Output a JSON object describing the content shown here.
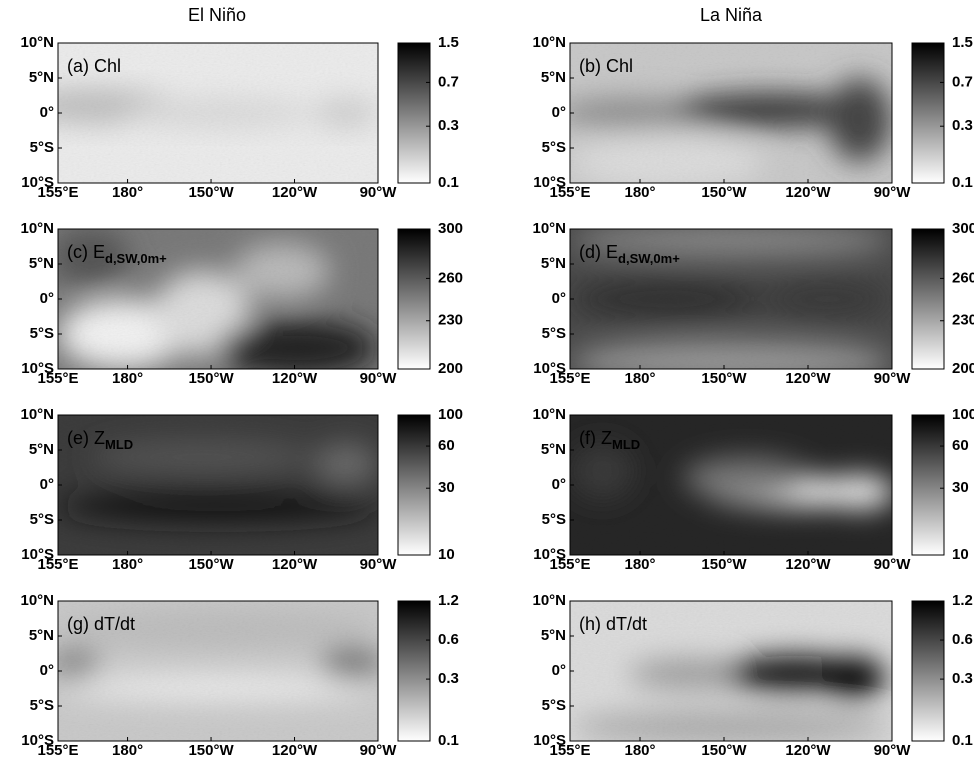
{
  "column_titles": [
    "El Niño",
    "La Niña"
  ],
  "axes": {
    "xlim": [
      155,
      270
    ],
    "xticks": [
      {
        "value": 155,
        "label": "155°E"
      },
      {
        "value": 180,
        "label": "180°"
      },
      {
        "value": 210,
        "label": "150°W"
      },
      {
        "value": 240,
        "label": "120°W"
      },
      {
        "value": 270,
        "label": "90°W"
      }
    ],
    "ylim": [
      -10,
      10
    ],
    "yticks": [
      {
        "value": 10,
        "label": "10°N"
      },
      {
        "value": 5,
        "label": "5°N"
      },
      {
        "value": 0,
        "label": "0°"
      },
      {
        "value": -5,
        "label": "5°S"
      },
      {
        "value": -10,
        "label": "10°S"
      }
    ]
  },
  "panels": [
    {
      "label": "(a) Chl",
      "colorbar": {
        "lim": [
          0.1,
          1.5
        ],
        "ticks": [
          1.5,
          0.7,
          0.3,
          0.1
        ],
        "log": true
      }
    },
    {
      "label": "(b) Chl",
      "colorbar": {
        "lim": [
          0.1,
          1.5
        ],
        "ticks": [
          1.5,
          0.7,
          0.3,
          0.1
        ],
        "log": true
      }
    },
    {
      "label": "(c) E",
      "label_subscript": "d,SW,0m+",
      "colorbar": {
        "lim": [
          200,
          300
        ],
        "ticks": [
          300,
          260,
          230,
          200
        ],
        "log": true
      }
    },
    {
      "label": "(d) E",
      "label_subscript": "d,SW,0m+",
      "colorbar": {
        "lim": [
          200,
          300
        ],
        "ticks": [
          300,
          260,
          230,
          200
        ],
        "log": true
      }
    },
    {
      "label": "(e) Z",
      "label_subscript": "MLD",
      "colorbar": {
        "lim": [
          10,
          100
        ],
        "ticks": [
          100,
          60,
          30,
          10
        ],
        "log": true
      }
    },
    {
      "label": "(f) Z",
      "label_subscript": "MLD",
      "colorbar": {
        "lim": [
          10,
          100
        ],
        "ticks": [
          100,
          60,
          30,
          10
        ],
        "log": true
      }
    },
    {
      "label": "(g) dT/dt",
      "colorbar": {
        "lim": [
          0.1,
          1.2
        ],
        "ticks": [
          1.2,
          0.6,
          0.3,
          0.1
        ],
        "log": true
      }
    },
    {
      "label": "(h) dT/dt",
      "colorbar": {
        "lim": [
          0.1,
          1.2
        ],
        "ticks": [
          1.2,
          0.6,
          0.3,
          0.1
        ],
        "log": true
      }
    }
  ]
}
